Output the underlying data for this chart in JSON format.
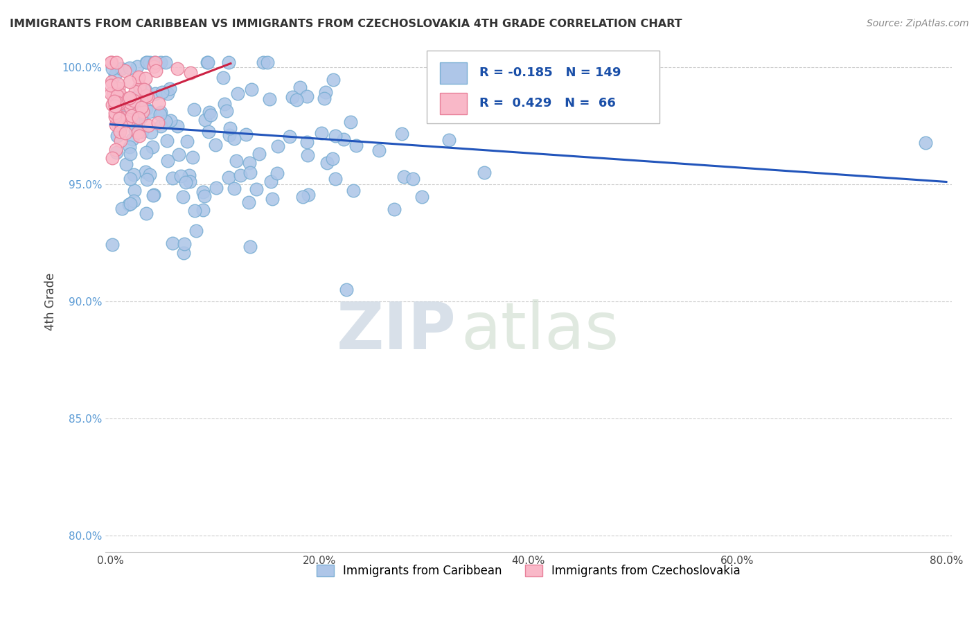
{
  "title": "IMMIGRANTS FROM CARIBBEAN VS IMMIGRANTS FROM CZECHOSLOVAKIA 4TH GRADE CORRELATION CHART",
  "source": "Source: ZipAtlas.com",
  "xlabel": "",
  "ylabel": "4th Grade",
  "xlim": [
    -0.005,
    0.805
  ],
  "ylim": [
    0.793,
    1.007
  ],
  "yticks": [
    0.8,
    0.85,
    0.9,
    0.95,
    1.0
  ],
  "ytick_labels": [
    "80.0%",
    "85.0%",
    "90.0%",
    "95.0%",
    "100.0%"
  ],
  "xticks": [
    0.0,
    0.2,
    0.4,
    0.6,
    0.8
  ],
  "xtick_labels": [
    "0.0%",
    "20.0%",
    "40.0%",
    "60.0%",
    "80.0%"
  ],
  "blue_color": "#aec6e8",
  "blue_edge": "#7bafd4",
  "pink_color": "#f9b8c8",
  "pink_edge": "#e8809a",
  "blue_line_color": "#2255bb",
  "pink_line_color": "#cc2244",
  "legend_R1": "-0.185",
  "legend_N1": "149",
  "legend_R2": "0.429",
  "legend_N2": "66",
  "watermark_zip": "ZIP",
  "watermark_atlas": "atlas",
  "blue_label": "Immigrants from Caribbean",
  "pink_label": "Immigrants from Czechoslovakia",
  "grid_color": "#cccccc",
  "grid_style": "--",
  "blue_trend_x": [
    0.0,
    0.8
  ],
  "blue_trend_y": [
    0.9755,
    0.951
  ],
  "pink_trend_x": [
    0.0,
    0.115
  ],
  "pink_trend_y": [
    0.982,
    1.0015
  ]
}
